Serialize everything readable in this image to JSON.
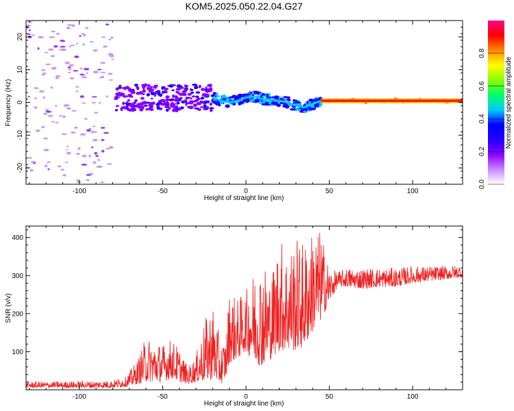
{
  "title": "KOM5.2025.050.22.04.G27",
  "chart_data": [
    {
      "type": "heatmap",
      "panel": "spectrogram",
      "xlabel": "Height of straight line (km)",
      "ylabel": "Frequency (Hz)",
      "xlim": [
        -132,
        130
      ],
      "ylim": [
        -25,
        25
      ],
      "x_ticks": [
        -100,
        -50,
        0,
        50,
        100
      ],
      "y_ticks": [
        -20,
        -10,
        0,
        10,
        20
      ],
      "grid": false,
      "colorbar": {
        "label": "Normalized spectral amplitude",
        "range": [
          0,
          1
        ],
        "ticks": [
          "0.0",
          "0.2",
          "0.4",
          "0.6",
          "0.8"
        ],
        "colors": [
          "#ffffff",
          "#cc88ff",
          "#8800ff",
          "#2200ff",
          "#0000ff",
          "#00ccff",
          "#00ff66",
          "#88ff00",
          "#ffff00",
          "#ff8800",
          "#ff0000",
          "#ff0088"
        ]
      },
      "regions": [
        {
          "x_range": [
            -132,
            -80
          ],
          "freq_spread": 25,
          "level": 0.05
        },
        {
          "x_range": [
            -78,
            -20
          ],
          "freq_spread": 4,
          "level": 0.15
        },
        {
          "x_range": [
            -20,
            45
          ],
          "freq_spread": 2,
          "level": 0.25
        },
        {
          "x_range": [
            45,
            130
          ],
          "freq_spread": 0.5,
          "level": 0.9
        }
      ],
      "peak_trace": [
        {
          "x": -20,
          "y": 1.5
        },
        {
          "x": -15,
          "y": 0.5
        },
        {
          "x": -10,
          "y": 0
        },
        {
          "x": -5,
          "y": 0.5
        },
        {
          "x": 0,
          "y": 1.5
        },
        {
          "x": 5,
          "y": 1.8
        },
        {
          "x": 10,
          "y": 1
        },
        {
          "x": 15,
          "y": 0.8
        },
        {
          "x": 20,
          "y": 0.5
        },
        {
          "x": 25,
          "y": 0
        },
        {
          "x": 30,
          "y": -1
        },
        {
          "x": 35,
          "y": -1.5
        },
        {
          "x": 40,
          "y": -0.5
        },
        {
          "x": 45,
          "y": 0.5
        },
        {
          "x": 130,
          "y": 0.5
        }
      ]
    },
    {
      "type": "line",
      "panel": "snr",
      "xlabel": "Height of straight line (km)",
      "ylabel": "SNR (v/v)",
      "xlim": [
        -132,
        130
      ],
      "ylim": [
        0,
        430
      ],
      "x_ticks": [
        -100,
        -50,
        0,
        50,
        100
      ],
      "y_ticks": [
        100,
        200,
        300,
        400
      ],
      "grid": false,
      "color": "#ee2222",
      "envelope": [
        {
          "x": -132,
          "lo": 5,
          "hi": 22
        },
        {
          "x": -110,
          "lo": 5,
          "hi": 22
        },
        {
          "x": -80,
          "lo": 5,
          "hi": 25
        },
        {
          "x": -72,
          "lo": 8,
          "hi": 35
        },
        {
          "x": -65,
          "lo": 15,
          "hi": 80
        },
        {
          "x": -60,
          "lo": 20,
          "hi": 140
        },
        {
          "x": -50,
          "lo": 20,
          "hi": 120
        },
        {
          "x": -45,
          "lo": 30,
          "hi": 135
        },
        {
          "x": -40,
          "lo": 20,
          "hi": 110
        },
        {
          "x": -35,
          "lo": 15,
          "hi": 60
        },
        {
          "x": -30,
          "lo": 20,
          "hi": 90
        },
        {
          "x": -25,
          "lo": 20,
          "hi": 180
        },
        {
          "x": -20,
          "lo": 25,
          "hi": 230
        },
        {
          "x": -15,
          "lo": 15,
          "hi": 120
        },
        {
          "x": -12,
          "lo": 30,
          "hi": 140
        },
        {
          "x": -10,
          "lo": 70,
          "hi": 260
        },
        {
          "x": -5,
          "lo": 80,
          "hi": 240
        },
        {
          "x": 0,
          "lo": 100,
          "hi": 260
        },
        {
          "x": 5,
          "lo": 70,
          "hi": 320
        },
        {
          "x": 10,
          "lo": 60,
          "hi": 350
        },
        {
          "x": 15,
          "lo": 80,
          "hi": 300
        },
        {
          "x": 20,
          "lo": 100,
          "hi": 410
        },
        {
          "x": 25,
          "lo": 100,
          "hi": 370
        },
        {
          "x": 30,
          "lo": 100,
          "hi": 400
        },
        {
          "x": 35,
          "lo": 110,
          "hi": 390
        },
        {
          "x": 40,
          "lo": 150,
          "hi": 420
        },
        {
          "x": 45,
          "lo": 180,
          "hi": 420
        },
        {
          "x": 50,
          "lo": 230,
          "hi": 320
        },
        {
          "x": 55,
          "lo": 270,
          "hi": 310
        },
        {
          "x": 60,
          "lo": 270,
          "hi": 320
        },
        {
          "x": 70,
          "lo": 265,
          "hi": 320
        },
        {
          "x": 80,
          "lo": 270,
          "hi": 320
        },
        {
          "x": 90,
          "lo": 270,
          "hi": 320
        },
        {
          "x": 100,
          "lo": 280,
          "hi": 325
        },
        {
          "x": 110,
          "lo": 285,
          "hi": 325
        },
        {
          "x": 120,
          "lo": 290,
          "hi": 325
        },
        {
          "x": 130,
          "lo": 295,
          "hi": 330
        }
      ]
    }
  ]
}
